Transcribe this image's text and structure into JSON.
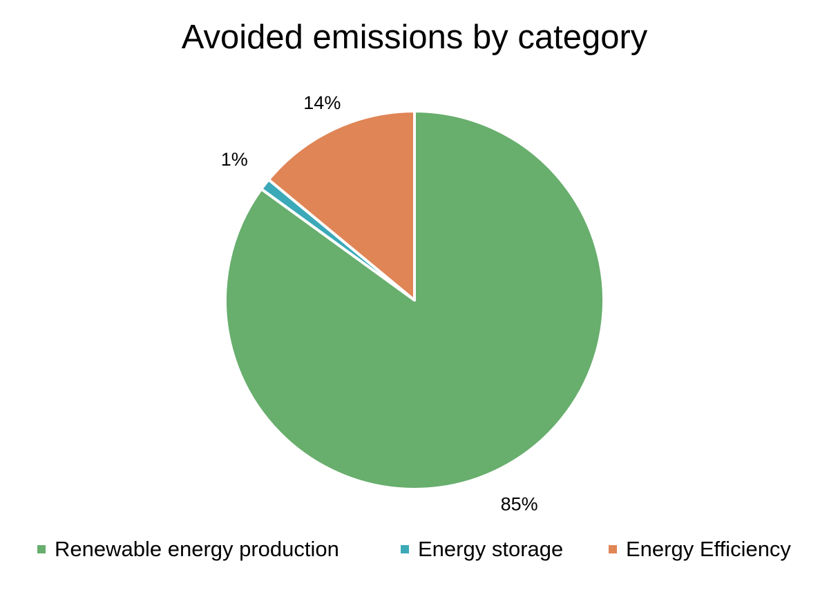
{
  "chart_data": {
    "type": "pie",
    "title": "Avoided emissions by category",
    "categories": [
      "Renewable energy production",
      "Energy storage",
      "Energy Efficiency"
    ],
    "values": [
      85,
      1,
      14
    ],
    "data_labels": [
      "85%",
      "1%",
      "14%"
    ],
    "colors": [
      "#68AE6D",
      "#3BA9B8",
      "#E08556"
    ],
    "legend_position": "bottom",
    "start_angle": "12 o'clock",
    "direction": "clockwise"
  }
}
